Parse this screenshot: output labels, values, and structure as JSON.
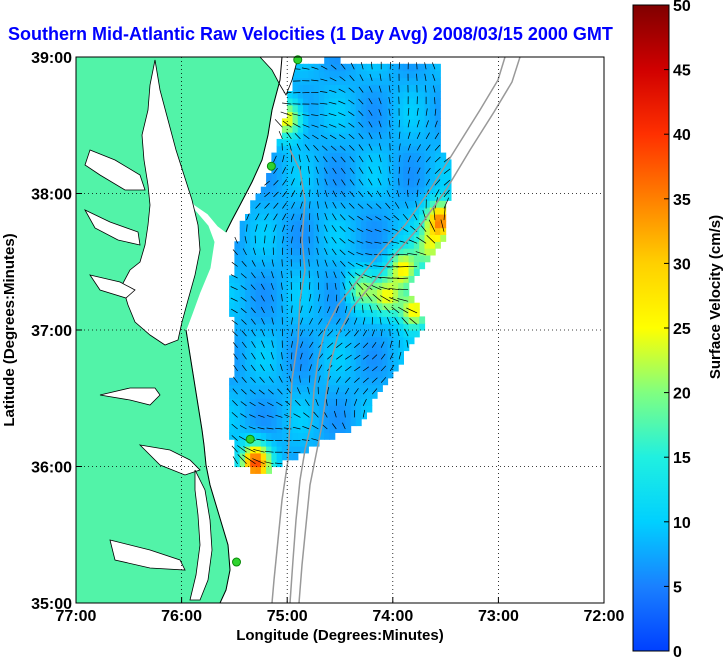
{
  "chart_data": {
    "type": "heatmap",
    "title": "Southern Mid-Atlantic Raw Velocities (1 Day Avg) 2008/03/15 2000 GMT",
    "xlabel": "Longitude (Degrees:Minutes)",
    "ylabel": "Latitude (Degrees:Minutes)",
    "xlim": [
      -77,
      -72
    ],
    "ylim": [
      35,
      39
    ],
    "x_ticks": [
      {
        "value": -77,
        "label": "77:00"
      },
      {
        "value": -76,
        "label": "76:00"
      },
      {
        "value": -75,
        "label": "75:00"
      },
      {
        "value": -74,
        "label": "74:00"
      },
      {
        "value": -73,
        "label": "73:00"
      },
      {
        "value": -72,
        "label": "72:00"
      }
    ],
    "y_ticks": [
      {
        "value": 39,
        "label": "39:00"
      },
      {
        "value": 38,
        "label": "38:00"
      },
      {
        "value": 37,
        "label": "37:00"
      },
      {
        "value": 36,
        "label": "36:00"
      },
      {
        "value": 35,
        "label": "35:00"
      }
    ],
    "grid": true,
    "colorbar": {
      "label": "Surface Velocity (cm/s)",
      "range": [
        0,
        50
      ],
      "ticks": [
        {
          "value": 50,
          "label": "50"
        },
        {
          "value": 45,
          "label": "45"
        },
        {
          "value": 40,
          "label": "40"
        },
        {
          "value": 35,
          "label": "35"
        },
        {
          "value": 30,
          "label": "30"
        },
        {
          "value": 25,
          "label": "25"
        },
        {
          "value": 20,
          "label": "20"
        },
        {
          "value": 15,
          "label": "15"
        },
        {
          "value": 10,
          "label": "10"
        },
        {
          "value": 5,
          "label": "5"
        },
        {
          "value": 0,
          "label": "0"
        }
      ]
    },
    "hf_radar_sites": [
      {
        "lon": -74.9,
        "lat": 38.98
      },
      {
        "lon": -75.15,
        "lat": 38.2
      },
      {
        "lon": -75.35,
        "lat": 36.2
      },
      {
        "lon": -75.48,
        "lat": 35.3
      }
    ],
    "velocity_hotspots": [
      {
        "lon": -75.3,
        "lat": 36.03,
        "speed": 38
      },
      {
        "lon": -73.55,
        "lat": 37.8,
        "speed": 36
      },
      {
        "lon": -73.8,
        "lat": 37.15,
        "speed": 27
      },
      {
        "lon": -73.9,
        "lat": 37.45,
        "speed": 26
      },
      {
        "lon": -74.05,
        "lat": 37.25,
        "speed": 23
      },
      {
        "lon": -74.3,
        "lat": 37.3,
        "speed": 20
      },
      {
        "lon": -75.0,
        "lat": 38.55,
        "speed": 26
      },
      {
        "lon": -73.65,
        "lat": 37.6,
        "speed": 22
      }
    ],
    "background_speed": 8,
    "colors": {
      "land": "#52f3a8",
      "coverage_edge": "#5ec5ff",
      "vectors": "#000000",
      "isobaths": "#999999",
      "sites": "#2fd42f"
    }
  }
}
